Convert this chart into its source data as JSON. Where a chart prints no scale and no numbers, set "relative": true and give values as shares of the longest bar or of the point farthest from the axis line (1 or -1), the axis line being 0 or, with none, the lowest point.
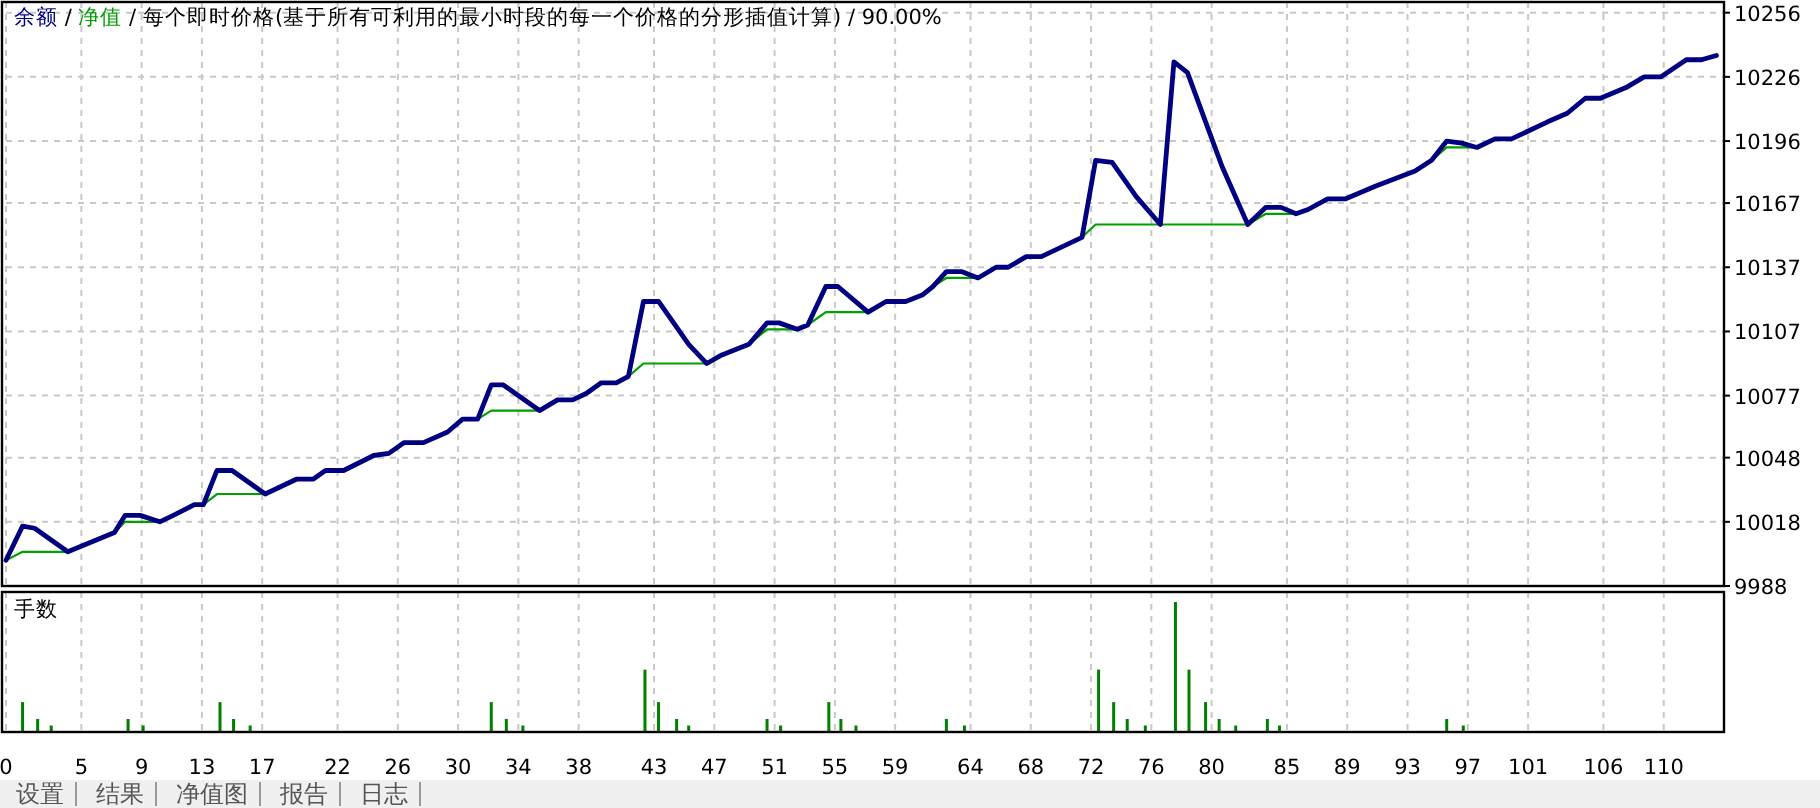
{
  "chart_data": [
    {
      "type": "line",
      "title": "每个即时价格(基于所有可利用的最小时段的每一个价格的分形插值计算)",
      "subtitle": "90.00%",
      "annotations": [
        "/",
        "/",
        "/"
      ],
      "legend": "top left",
      "grid": true,
      "tick_labels": "y",
      "xlim": [
        0,
        114
      ],
      "ylim": [
        9988,
        10261
      ],
      "xticks": [
        0,
        5,
        9,
        13,
        17,
        22,
        26,
        30,
        34,
        38,
        43,
        47,
        51,
        55,
        59,
        64,
        68,
        72,
        76,
        80,
        85,
        89,
        93,
        97,
        101,
        106,
        110
      ],
      "yticks": [
        9988,
        10018,
        10048,
        10077,
        10107,
        10137,
        10167,
        10196,
        10226,
        10256
      ],
      "x": [
        0,
        1.1,
        1.9,
        4.1,
        7.2,
        7.9,
        8.9,
        10.2,
        11.1,
        12.5,
        13.1,
        14.0,
        15.0,
        17.2,
        19.3,
        20.4,
        21.2,
        22.4,
        24.4,
        25.4,
        26.4,
        27.7,
        29.3,
        30.3,
        31.3,
        32.2,
        33.0,
        35.4,
        36.6,
        37.6,
        38.5,
        39.5,
        40.5,
        41.3,
        42.3,
        43.3,
        45.3,
        46.5,
        47.5,
        49.3,
        50.5,
        51.3,
        52.5,
        53.2,
        54.4,
        55.2,
        57.2,
        58.4,
        59.7,
        60.8,
        61.5,
        62.4,
        63.4,
        64.5,
        65.7,
        66.5,
        67.7,
        68.7,
        71.4,
        72.3,
        73.4,
        75.0,
        76.6,
        77.5,
        78.4,
        79.6,
        80.7,
        82.4,
        83.6,
        84.6,
        85.6,
        86.4,
        87.7,
        88.9,
        90.9,
        93.5,
        94.6,
        95.6,
        96.6,
        97.6,
        98.8,
        99.9,
        102.3,
        103.6,
        104.8,
        105.8,
        107.5,
        108.7,
        109.8,
        111.5,
        112.5,
        113.5
      ],
      "series": [
        {
          "name": "余额",
          "color": "#000080",
          "values": [
            10000,
            10016,
            10015,
            10004,
            10013,
            10021,
            10021,
            10018,
            10021,
            10026,
            10026,
            10042,
            10042,
            10031,
            10038,
            10038,
            10042,
            10042,
            10049,
            10050,
            10055,
            10055,
            10060,
            10066,
            10066,
            10082,
            10082,
            10070,
            10075,
            10075,
            10078,
            10083,
            10083,
            10086,
            10121,
            10121,
            10101,
            10092,
            10096,
            10101,
            10111,
            10111,
            10108,
            10110,
            10128,
            10128,
            10116,
            10121,
            10121,
            10124,
            10128,
            10135,
            10135,
            10132,
            10137,
            10137,
            10142,
            10142,
            10151,
            10187,
            10186,
            10170,
            10157,
            10233,
            10228,
            10205,
            10184,
            10157,
            10165,
            10165,
            10162,
            10164,
            10169,
            10169,
            10175,
            10182,
            10187,
            10196,
            10195,
            10193,
            10197,
            10197,
            10205,
            10209,
            10216,
            10216,
            10221,
            10226,
            10226,
            10234,
            10234,
            10236
          ]
        },
        {
          "name": "净值",
          "color": "#00a000",
          "values": [
            10000,
            10004,
            10004,
            10004,
            10013,
            10018,
            10018,
            10018,
            null,
            null,
            10026,
            10031,
            10031,
            10031,
            null,
            null,
            null,
            null,
            null,
            null,
            null,
            null,
            null,
            null,
            10066,
            10070,
            10070,
            10070,
            null,
            null,
            null,
            null,
            null,
            10086,
            10092,
            10092,
            10092,
            10092,
            null,
            10101,
            10108,
            10108,
            10108,
            10110,
            10116,
            10116,
            10116,
            null,
            null,
            null,
            10128,
            10132,
            10132,
            10132,
            null,
            null,
            null,
            null,
            10151,
            10157,
            10157,
            10157,
            10157,
            10157,
            10157,
            10157,
            10157,
            10157,
            10162,
            10162,
            10162,
            null,
            null,
            null,
            null,
            null,
            10187,
            10193,
            10193,
            10193,
            null,
            null,
            null,
            null,
            null,
            null,
            null,
            null,
            null,
            null,
            null,
            null
          ]
        }
      ]
    },
    {
      "type": "bar",
      "title": "手数",
      "relative": true,
      "grid": "x",
      "tick_labels": "x",
      "color": "#008000",
      "xlim": [
        0,
        114
      ],
      "xticks": [
        0,
        5,
        9,
        13,
        17,
        22,
        26,
        30,
        34,
        38,
        43,
        47,
        51,
        55,
        59,
        64,
        68,
        72,
        76,
        80,
        85,
        89,
        93,
        97,
        101,
        106,
        110
      ],
      "x": [
        1.1,
        2.1,
        3.0,
        8.1,
        9.1,
        14.2,
        15.1,
        16.2,
        32.2,
        33.2,
        34.3,
        42.4,
        43.3,
        44.5,
        45.3,
        50.5,
        51.4,
        54.6,
        55.4,
        56.4,
        62.4,
        63.6,
        72.5,
        73.5,
        74.4,
        75.6,
        77.6,
        78.5,
        79.6,
        80.5,
        81.6,
        83.7,
        84.5,
        95.6,
        96.7
      ],
      "values": [
        0.23,
        0.1,
        0.05,
        0.1,
        0.05,
        0.23,
        0.1,
        0.05,
        0.23,
        0.1,
        0.05,
        0.48,
        0.23,
        0.1,
        0.05,
        0.1,
        0.05,
        0.23,
        0.1,
        0.05,
        0.1,
        0.05,
        0.48,
        0.23,
        0.1,
        0.05,
        1,
        0.48,
        0.23,
        0.1,
        0.05,
        0.1,
        0.05,
        0.1,
        0.05
      ]
    },
    {
      "type": "other",
      "annotations": [
        "设置",
        "结果",
        "净值图",
        "报告",
        "日志"
      ]
    }
  ]
}
